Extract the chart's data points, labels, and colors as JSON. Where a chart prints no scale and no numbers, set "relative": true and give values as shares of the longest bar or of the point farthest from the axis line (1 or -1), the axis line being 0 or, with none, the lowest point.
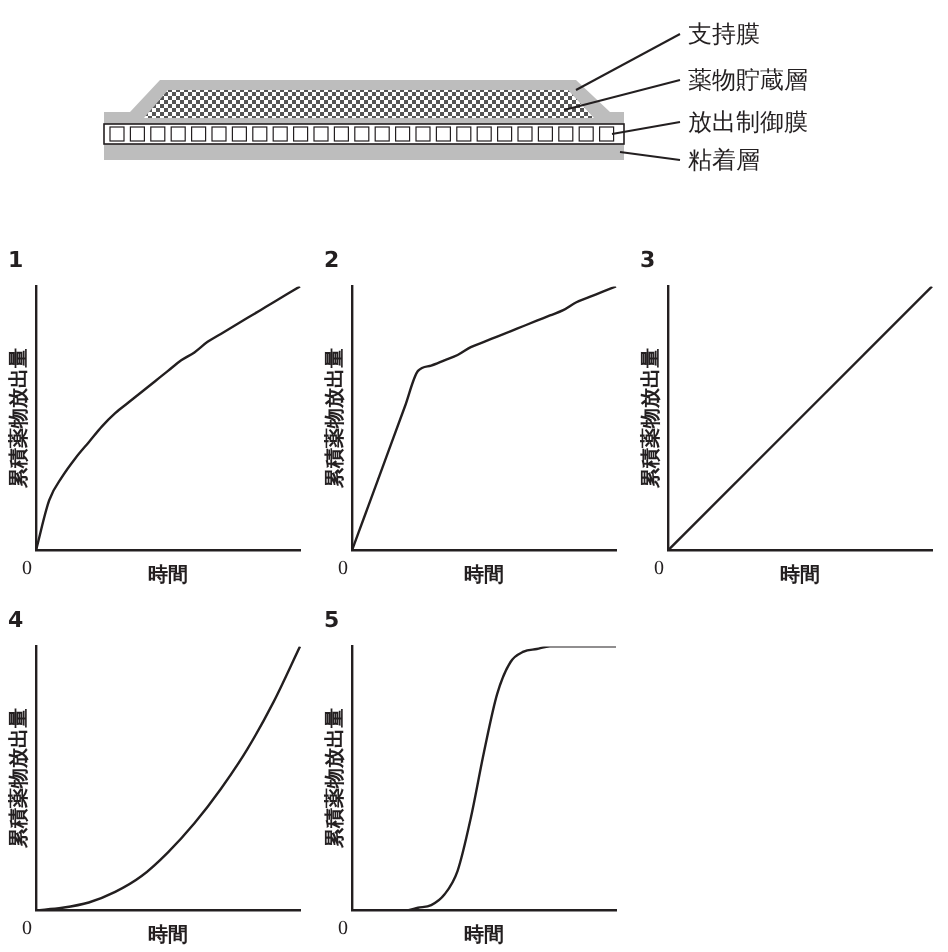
{
  "chart_data": [
    {
      "type": "other",
      "annotations": [
        "支持膜",
        "薬物貯蔵層",
        "放出制御膜",
        "粘着層"
      ]
    },
    {
      "type": "line",
      "title": "1",
      "xlabel": "時間",
      "ylabel": "累積薬物放出量",
      "relative": true,
      "color": "#231f20",
      "grid": false,
      "legend": false,
      "marker": "none",
      "line_style": "solid",
      "annotations": [
        "0"
      ],
      "categories": [
        null,
        null,
        null,
        null,
        null,
        null,
        null,
        null,
        null,
        null,
        null,
        null,
        null,
        null,
        null,
        null,
        null,
        null,
        null,
        null,
        null
      ],
      "values": [
        0,
        0.19,
        0.28,
        0.35,
        0.41,
        0.47,
        0.52,
        0.56,
        0.6,
        0.64,
        0.68,
        0.72,
        0.75,
        0.79,
        0.82,
        0.85,
        0.88,
        0.91,
        0.94,
        0.97,
        1
      ]
    },
    {
      "type": "line",
      "title": "2",
      "xlabel": "時間",
      "ylabel": "累積薬物放出量",
      "relative": true,
      "color": "#231f20",
      "grid": false,
      "legend": false,
      "marker": "none",
      "line_style": "solid",
      "annotations": [
        "0"
      ],
      "categories": [
        null,
        null,
        null,
        null,
        null,
        null,
        null,
        null,
        null,
        null,
        null,
        null,
        null,
        null,
        null,
        null,
        null,
        null,
        null,
        null,
        null
      ],
      "values": [
        0,
        0.136,
        0.272,
        0.408,
        0.544,
        0.68,
        0.7,
        0.72,
        0.74,
        0.77,
        0.79,
        0.81,
        0.83,
        0.85,
        0.87,
        0.89,
        0.91,
        0.94,
        0.96,
        0.98,
        1
      ]
    },
    {
      "type": "line",
      "title": "3",
      "xlabel": "時間",
      "ylabel": "累積薬物放出量",
      "relative": true,
      "color": "#231f20",
      "grid": false,
      "legend": false,
      "marker": "none",
      "line_style": "solid",
      "annotations": [
        "0"
      ],
      "categories": [
        null,
        null
      ],
      "values": [
        0,
        1
      ]
    },
    {
      "type": "line",
      "title": "4",
      "xlabel": "時間",
      "ylabel": "累積薬物放出量",
      "relative": true,
      "color": "#231f20",
      "grid": false,
      "legend": false,
      "marker": "none",
      "line_style": "solid",
      "annotations": [
        "0"
      ],
      "categories": [
        null,
        null,
        null,
        null,
        null,
        null,
        null,
        null,
        null,
        null,
        null
      ],
      "values": [
        0,
        0.01,
        0.03,
        0.07,
        0.13,
        0.22,
        0.33,
        0.46,
        0.61,
        0.79,
        1
      ]
    },
    {
      "type": "line",
      "title": "5",
      "xlabel": "時間",
      "ylabel": "累積薬物放出量",
      "relative": true,
      "color": "#231f20",
      "grid": false,
      "legend": false,
      "marker": "none",
      "line_style": "solid",
      "annotations": [
        "0"
      ],
      "categories": [
        null,
        null,
        null,
        null,
        null,
        null,
        null,
        null,
        null,
        null,
        null,
        null,
        null,
        null,
        null,
        null,
        null,
        null,
        null,
        null,
        null
      ],
      "values": [
        0,
        0,
        0,
        0,
        0,
        0.01,
        0.02,
        0.06,
        0.15,
        0.35,
        0.6,
        0.82,
        0.94,
        0.98,
        0.99,
        1,
        1,
        1,
        1,
        1,
        1
      ]
    }
  ]
}
